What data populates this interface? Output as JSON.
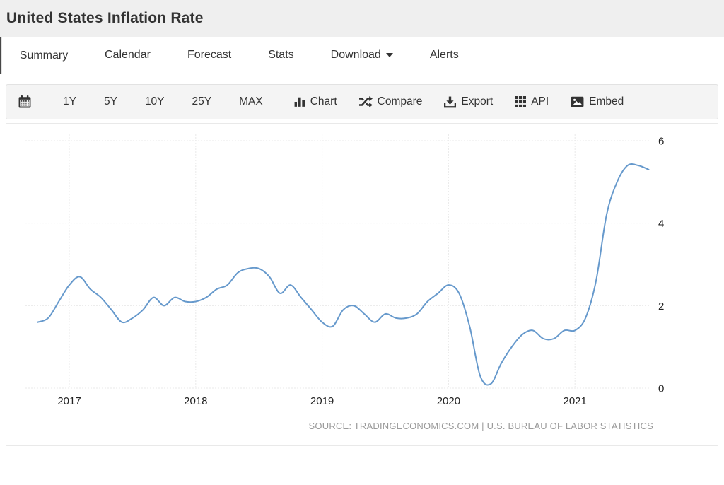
{
  "page": {
    "title": "United States Inflation Rate"
  },
  "tabs": [
    {
      "label": "Summary",
      "active": true
    },
    {
      "label": "Calendar",
      "active": false
    },
    {
      "label": "Forecast",
      "active": false
    },
    {
      "label": "Stats",
      "active": false
    },
    {
      "label": "Download",
      "active": false,
      "has_caret": true
    },
    {
      "label": "Alerts",
      "active": false
    }
  ],
  "toolbar": {
    "calendar_icon": "calendar-icon",
    "ranges": [
      "1Y",
      "5Y",
      "10Y",
      "25Y",
      "MAX"
    ],
    "actions": [
      {
        "icon": "bar-chart-icon",
        "label": "Chart"
      },
      {
        "icon": "shuffle-icon",
        "label": "Compare"
      },
      {
        "icon": "download-icon",
        "label": "Export"
      },
      {
        "icon": "grid-icon",
        "label": "API"
      },
      {
        "icon": "image-icon",
        "label": "Embed"
      }
    ]
  },
  "chart_data": {
    "type": "line",
    "title": "United States Inflation Rate",
    "frequency": "monthly",
    "x_start": "2016-10",
    "x_end": "2021-08",
    "x_tick_labels": [
      "2017",
      "2018",
      "2019",
      "2020",
      "2021"
    ],
    "y_ticks": [
      0,
      2,
      4,
      6
    ],
    "ylim": [
      0,
      6.3
    ],
    "grid": "dashed",
    "legend": "none",
    "line_color": "#6699cc",
    "grid_color": "#e9e9e9",
    "tick_color": "#222222",
    "series": [
      {
        "name": "Inflation Rate (%)",
        "values": [
          1.6,
          1.7,
          2.1,
          2.5,
          2.7,
          2.4,
          2.2,
          1.9,
          1.6,
          1.7,
          1.9,
          2.2,
          2.0,
          2.2,
          2.1,
          2.1,
          2.2,
          2.4,
          2.5,
          2.8,
          2.9,
          2.9,
          2.7,
          2.3,
          2.5,
          2.2,
          1.9,
          1.6,
          1.5,
          1.9,
          2.0,
          1.8,
          1.6,
          1.8,
          1.7,
          1.7,
          1.8,
          2.1,
          2.3,
          2.5,
          2.3,
          1.5,
          0.3,
          0.1,
          0.6,
          1.0,
          1.3,
          1.4,
          1.2,
          1.2,
          1.4,
          1.4,
          1.7,
          2.6,
          4.2,
          5.0,
          5.4,
          5.4,
          5.3
        ]
      }
    ]
  },
  "source_text": "SOURCE: TRADINGECONOMICS.COM | U.S. BUREAU OF LABOR STATISTICS"
}
